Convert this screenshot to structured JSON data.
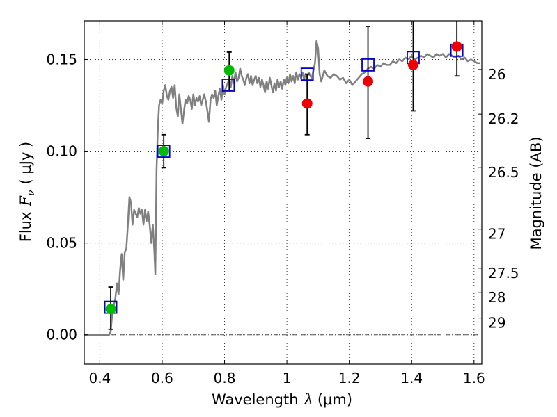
{
  "chart_data": {
    "type": "scatter",
    "xlabel": {
      "prefix": "Wavelength",
      "symbol": "λ",
      "unit": "(μm)"
    },
    "ylabel": {
      "prefix": "Flux",
      "symbol": "F",
      "subscript": "ν",
      "unit": "( μJy )"
    },
    "y2label": "Magnitude (AB)",
    "xlim": [
      0.35,
      1.625
    ],
    "ylim": [
      -0.016,
      0.171
    ],
    "grid": true,
    "x_ticks": [
      {
        "v": 0.4,
        "label": "0.4"
      },
      {
        "v": 0.6,
        "label": "0.6"
      },
      {
        "v": 0.8,
        "label": "0.8"
      },
      {
        "v": 1.0,
        "label": "1"
      },
      {
        "v": 1.2,
        "label": "1.2"
      },
      {
        "v": 1.4,
        "label": "1.4"
      },
      {
        "v": 1.6,
        "label": "1.6"
      }
    ],
    "y_ticks": [
      {
        "v": 0.0,
        "label": "0.00"
      },
      {
        "v": 0.05,
        "label": "0.05"
      },
      {
        "v": 0.1,
        "label": "0.10"
      },
      {
        "v": 0.15,
        "label": "0.15"
      }
    ],
    "y2_ticks": [
      {
        "mag": 26,
        "label": "26"
      },
      {
        "mag": 26.2,
        "label": "26.2"
      },
      {
        "mag": 26.5,
        "label": "26.5"
      },
      {
        "mag": 27,
        "label": "27"
      },
      {
        "mag": 27.5,
        "label": "27.5"
      },
      {
        "mag": 28,
        "label": "28"
      },
      {
        "mag": 29,
        "label": "29"
      }
    ],
    "zero_line": 0.0,
    "colors": {
      "template": "#808080",
      "model": "#0000cc",
      "green": "#00bb00",
      "red": "#ee0000",
      "errorbar": "#000000"
    },
    "series": [
      {
        "kind": "template_spectrum",
        "points": [
          [
            0.35,
            0.0
          ],
          [
            0.43,
            0.0
          ],
          [
            0.435,
            0.002
          ],
          [
            0.44,
            0.012
          ],
          [
            0.45,
            0.02
          ],
          [
            0.455,
            0.028
          ],
          [
            0.46,
            0.022
          ],
          [
            0.465,
            0.035
          ],
          [
            0.47,
            0.044
          ],
          [
            0.475,
            0.03
          ],
          [
            0.48,
            0.045
          ],
          [
            0.485,
            0.047
          ],
          [
            0.49,
            0.06
          ],
          [
            0.495,
            0.075
          ],
          [
            0.5,
            0.072
          ],
          [
            0.505,
            0.06
          ],
          [
            0.51,
            0.068
          ],
          [
            0.515,
            0.066
          ],
          [
            0.52,
            0.064
          ],
          [
            0.525,
            0.069
          ],
          [
            0.53,
            0.066
          ],
          [
            0.535,
            0.068
          ],
          [
            0.54,
            0.06
          ],
          [
            0.545,
            0.068
          ],
          [
            0.55,
            0.062
          ],
          [
            0.555,
            0.067
          ],
          [
            0.56,
            0.06
          ],
          [
            0.565,
            0.05
          ],
          [
            0.57,
            0.06
          ],
          [
            0.575,
            0.045
          ],
          [
            0.578,
            0.033
          ],
          [
            0.582,
            0.09
          ],
          [
            0.586,
            0.112
          ],
          [
            0.59,
            0.125
          ],
          [
            0.595,
            0.128
          ],
          [
            0.6,
            0.126
          ],
          [
            0.605,
            0.133
          ],
          [
            0.61,
            0.136
          ],
          [
            0.615,
            0.13
          ],
          [
            0.62,
            0.128
          ],
          [
            0.625,
            0.133
          ],
          [
            0.63,
            0.135
          ],
          [
            0.635,
            0.129
          ],
          [
            0.64,
            0.136
          ],
          [
            0.645,
            0.124
          ],
          [
            0.65,
            0.119
          ],
          [
            0.655,
            0.131
          ],
          [
            0.66,
            0.123
          ],
          [
            0.665,
            0.115
          ],
          [
            0.67,
            0.122
          ],
          [
            0.675,
            0.128
          ],
          [
            0.68,
            0.126
          ],
          [
            0.685,
            0.13
          ],
          [
            0.69,
            0.128
          ],
          [
            0.695,
            0.123
          ],
          [
            0.7,
            0.131
          ],
          [
            0.705,
            0.125
          ],
          [
            0.71,
            0.129
          ],
          [
            0.715,
            0.127
          ],
          [
            0.72,
            0.13
          ],
          [
            0.725,
            0.125
          ],
          [
            0.73,
            0.128
          ],
          [
            0.735,
            0.131
          ],
          [
            0.74,
            0.127
          ],
          [
            0.745,
            0.122
          ],
          [
            0.75,
            0.116
          ],
          [
            0.755,
            0.128
          ],
          [
            0.76,
            0.131
          ],
          [
            0.765,
            0.129
          ],
          [
            0.77,
            0.133
          ],
          [
            0.775,
            0.125
          ],
          [
            0.78,
            0.13
          ],
          [
            0.785,
            0.134
          ],
          [
            0.79,
            0.128
          ],
          [
            0.795,
            0.136
          ],
          [
            0.8,
            0.131
          ],
          [
            0.805,
            0.135
          ],
          [
            0.81,
            0.137
          ],
          [
            0.815,
            0.139
          ],
          [
            0.82,
            0.135
          ],
          [
            0.825,
            0.141
          ],
          [
            0.83,
            0.137
          ],
          [
            0.835,
            0.143
          ],
          [
            0.84,
            0.138
          ],
          [
            0.845,
            0.14
          ],
          [
            0.85,
            0.145
          ],
          [
            0.855,
            0.141
          ],
          [
            0.86,
            0.139
          ],
          [
            0.865,
            0.136
          ],
          [
            0.87,
            0.14
          ],
          [
            0.875,
            0.142
          ],
          [
            0.88,
            0.137
          ],
          [
            0.885,
            0.141
          ],
          [
            0.89,
            0.136
          ],
          [
            0.895,
            0.139
          ],
          [
            0.9,
            0.141
          ],
          [
            0.905,
            0.137
          ],
          [
            0.91,
            0.14
          ],
          [
            0.915,
            0.135
          ],
          [
            0.92,
            0.139
          ],
          [
            0.925,
            0.136
          ],
          [
            0.93,
            0.132
          ],
          [
            0.935,
            0.138
          ],
          [
            0.94,
            0.134
          ],
          [
            0.945,
            0.14
          ],
          [
            0.95,
            0.136
          ],
          [
            0.955,
            0.132
          ],
          [
            0.96,
            0.137
          ],
          [
            0.965,
            0.133
          ],
          [
            0.97,
            0.139
          ],
          [
            0.975,
            0.135
          ],
          [
            0.98,
            0.138
          ],
          [
            0.985,
            0.134
          ],
          [
            0.99,
            0.139
          ],
          [
            0.995,
            0.136
          ],
          [
            1.0,
            0.14
          ],
          [
            1.005,
            0.137
          ],
          [
            1.01,
            0.142
          ],
          [
            1.015,
            0.138
          ],
          [
            1.02,
            0.141
          ],
          [
            1.025,
            0.137
          ],
          [
            1.03,
            0.143
          ],
          [
            1.035,
            0.139
          ],
          [
            1.04,
            0.142
          ],
          [
            1.045,
            0.14
          ],
          [
            1.05,
            0.143
          ],
          [
            1.055,
            0.139
          ],
          [
            1.06,
            0.142
          ],
          [
            1.065,
            0.14
          ],
          [
            1.07,
            0.143
          ],
          [
            1.075,
            0.141
          ],
          [
            1.08,
            0.14
          ],
          [
            1.085,
            0.144
          ],
          [
            1.09,
            0.148
          ],
          [
            1.095,
            0.16
          ],
          [
            1.1,
            0.156
          ],
          [
            1.105,
            0.142
          ],
          [
            1.11,
            0.138
          ],
          [
            1.115,
            0.141
          ],
          [
            1.12,
            0.144
          ],
          [
            1.13,
            0.141
          ],
          [
            1.14,
            0.14
          ],
          [
            1.15,
            0.142
          ],
          [
            1.16,
            0.141
          ],
          [
            1.17,
            0.139
          ],
          [
            1.18,
            0.14
          ],
          [
            1.19,
            0.137
          ],
          [
            1.2,
            0.139
          ],
          [
            1.21,
            0.136
          ],
          [
            1.22,
            0.138
          ],
          [
            1.23,
            0.14
          ],
          [
            1.24,
            0.142
          ],
          [
            1.25,
            0.143
          ],
          [
            1.26,
            0.145
          ],
          [
            1.27,
            0.146
          ],
          [
            1.28,
            0.145
          ],
          [
            1.29,
            0.147
          ],
          [
            1.3,
            0.146
          ],
          [
            1.31,
            0.148
          ],
          [
            1.32,
            0.147
          ],
          [
            1.33,
            0.147
          ],
          [
            1.34,
            0.149
          ],
          [
            1.35,
            0.148
          ],
          [
            1.36,
            0.15
          ],
          [
            1.37,
            0.149
          ],
          [
            1.38,
            0.151
          ],
          [
            1.39,
            0.15
          ],
          [
            1.4,
            0.152
          ],
          [
            1.41,
            0.15
          ],
          [
            1.42,
            0.151
          ],
          [
            1.43,
            0.152
          ],
          [
            1.44,
            0.151
          ],
          [
            1.45,
            0.153
          ],
          [
            1.46,
            0.152
          ],
          [
            1.47,
            0.151
          ],
          [
            1.48,
            0.153
          ],
          [
            1.49,
            0.152
          ],
          [
            1.5,
            0.153
          ],
          [
            1.51,
            0.151
          ],
          [
            1.52,
            0.153
          ],
          [
            1.53,
            0.152
          ],
          [
            1.54,
            0.151
          ],
          [
            1.55,
            0.152
          ],
          [
            1.56,
            0.15
          ],
          [
            1.57,
            0.151
          ],
          [
            1.58,
            0.149
          ],
          [
            1.59,
            0.15
          ],
          [
            1.6,
            0.149
          ],
          [
            1.61,
            0.148
          ],
          [
            1.62,
            0.148
          ]
        ]
      },
      {
        "kind": "model_boxes",
        "points": [
          [
            0.435,
            0.015
          ],
          [
            0.605,
            0.1
          ],
          [
            0.812,
            0.136
          ],
          [
            1.065,
            0.142
          ],
          [
            1.26,
            0.147
          ],
          [
            1.405,
            0.151
          ],
          [
            1.545,
            0.155
          ]
        ]
      },
      {
        "kind": "green_circles",
        "points": [
          {
            "x": 0.435,
            "y": 0.014,
            "err": [
              0.003,
              0.026
            ]
          },
          {
            "x": 0.605,
            "y": 0.1,
            "err": [
              0.091,
              0.109
            ]
          },
          {
            "x": 0.815,
            "y": 0.144,
            "err": [
              0.133,
              0.154
            ]
          }
        ]
      },
      {
        "kind": "red_circles",
        "points": [
          {
            "x": 1.065,
            "y": 0.126,
            "err": [
              0.109,
              0.142
            ]
          },
          {
            "x": 1.26,
            "y": 0.138,
            "err": [
              0.107,
              0.168
            ]
          },
          {
            "x": 1.405,
            "y": 0.147,
            "err": [
              0.122,
              0.175
            ]
          },
          {
            "x": 1.545,
            "y": 0.157,
            "err": [
              0.141,
              0.175
            ]
          }
        ]
      }
    ]
  }
}
